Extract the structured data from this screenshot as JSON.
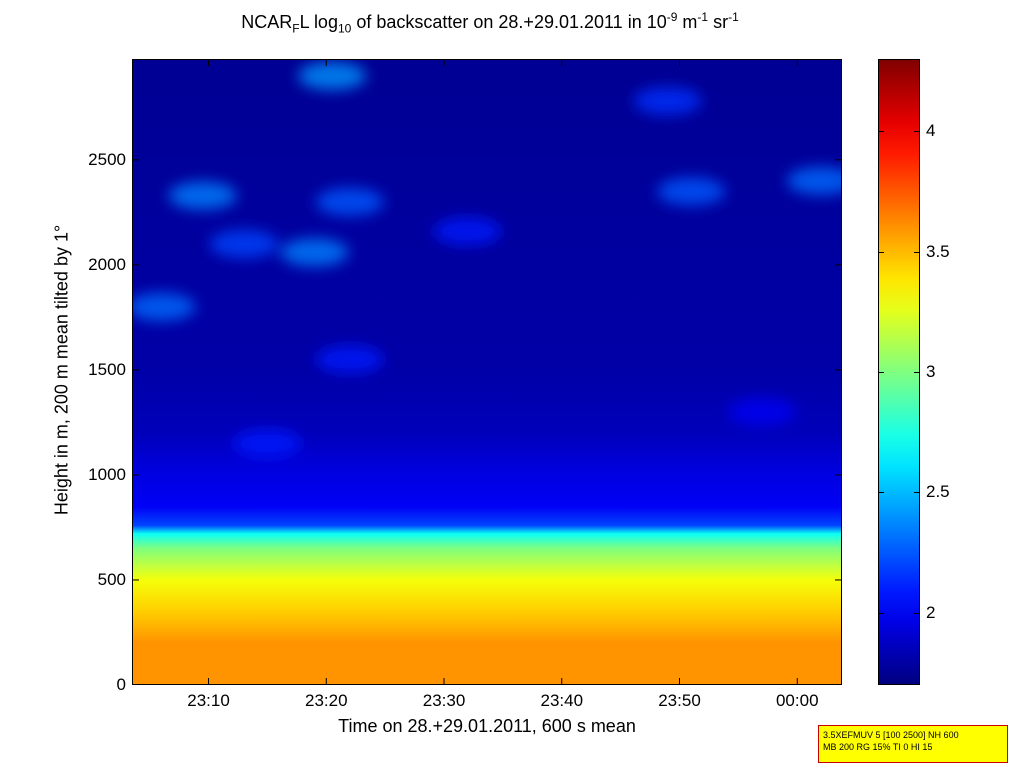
{
  "title": {
    "prefix": "NCAR",
    "sub1": "F",
    "mid1": "L log",
    "sub2": "10",
    "mid2": " of backscatter on 28.+29.01.2011 in 10",
    "sup1": "-9",
    "mid3": " m",
    "sup2": "-1",
    "mid4": " sr",
    "sup3": "-1"
  },
  "info_box": {
    "line1": "3.5XEFMUV 5 [100 2500] NH 600",
    "line2": "MB 200 RG 15% TI 0 HI 15"
  },
  "chart_data": {
    "type": "heatmap",
    "xlabel": "Time on 28.+29.01.2011, 600 s mean",
    "ylabel": "Height in m, 200 m mean tilted by 1°",
    "x_range_minutes": [
      1383.5,
      1443.8
    ],
    "x_ticks": [
      {
        "value": 1390,
        "label": "23:10"
      },
      {
        "value": 1400,
        "label": "23:20"
      },
      {
        "value": 1410,
        "label": "23:30"
      },
      {
        "value": 1420,
        "label": "23:40"
      },
      {
        "value": 1430,
        "label": "23:50"
      },
      {
        "value": 1440,
        "label": "00:00"
      }
    ],
    "ylim": [
      0,
      2980
    ],
    "y_ticks": [
      0,
      500,
      1000,
      1500,
      2000,
      2500
    ],
    "colorbar": {
      "range": [
        1.7,
        4.3
      ],
      "ticks": [
        "2",
        "2.5",
        "3",
        "3.5",
        "4"
      ],
      "tick_values": [
        2,
        2.5,
        3,
        3.5,
        4
      ],
      "colormap": "jet"
    },
    "vertical_profile": [
      {
        "height": 0,
        "value": 3.6
      },
      {
        "height": 200,
        "value": 3.6
      },
      {
        "height": 350,
        "value": 3.45
      },
      {
        "height": 500,
        "value": 3.3
      },
      {
        "height": 650,
        "value": 3.0
      },
      {
        "height": 720,
        "value": 2.7
      },
      {
        "height": 760,
        "value": 2.2
      },
      {
        "height": 850,
        "value": 2.0
      },
      {
        "height": 1000,
        "value": 1.95
      },
      {
        "height": 1200,
        "value": 1.85
      },
      {
        "height": 1500,
        "value": 1.8
      },
      {
        "height": 2980,
        "value": 1.75
      }
    ],
    "clouds": [
      {
        "x": 1389.5,
        "h": 2330,
        "value": 2.35
      },
      {
        "x": 1386,
        "h": 1800,
        "value": 2.3
      },
      {
        "x": 1393,
        "h": 2100,
        "value": 2.2
      },
      {
        "x": 1399,
        "h": 2060,
        "value": 2.35
      },
      {
        "x": 1402,
        "h": 2300,
        "value": 2.25
      },
      {
        "x": 1400.5,
        "h": 2900,
        "value": 2.4
      },
      {
        "x": 1412,
        "h": 2160,
        "value": 2.1
      },
      {
        "x": 1431,
        "h": 2350,
        "value": 2.25
      },
      {
        "x": 1429,
        "h": 2780,
        "value": 2.15
      },
      {
        "x": 1442,
        "h": 2400,
        "value": 2.3
      },
      {
        "x": 1402,
        "h": 1550,
        "value": 2.1
      },
      {
        "x": 1395,
        "h": 1150,
        "value": 2.1
      },
      {
        "x": 1437,
        "h": 1300,
        "value": 2.0
      }
    ]
  }
}
